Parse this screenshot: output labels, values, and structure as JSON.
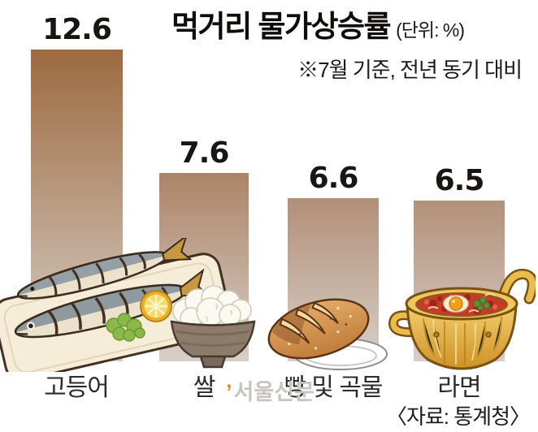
{
  "header": {
    "title": "먹거리 물가상승률",
    "unit": "(단위: %)",
    "subtitle": "※7월 기준, 전년 동기 대비"
  },
  "chart_data": {
    "type": "bar",
    "title": "먹거리 물가상승률",
    "unit_label": "(단위: %)",
    "note": "※7월 기준, 전년 동기 대비",
    "categories": [
      "고등어",
      "쌀",
      "빵 및 곡물",
      "라면"
    ],
    "values": [
      12.6,
      7.6,
      6.6,
      6.5
    ],
    "value_labels": [
      "12.6",
      "7.6",
      "6.6",
      "6.5"
    ],
    "ylim": [
      0,
      13
    ],
    "grid": false,
    "legend": false,
    "orientation": "vertical",
    "bar_colors_top": [
      "#9d6a3f",
      "#ac8466",
      "#b28f77",
      "#b39078"
    ],
    "bar_color_bottom": "#d7cfc8",
    "icons": [
      "grilled-mackerel-plate",
      "rice-bowl",
      "bread-loaf",
      "ramen-pot"
    ]
  },
  "footer": {
    "watermark_mark": "’",
    "watermark": "서울신문",
    "source": "〈자료: 통계청〉"
  }
}
